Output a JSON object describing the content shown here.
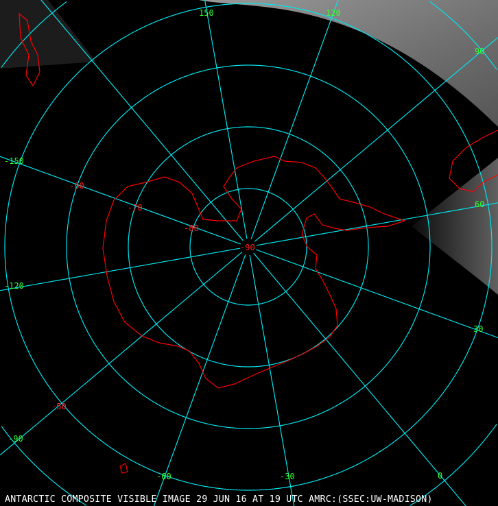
{
  "caption": "ANTARCTIC COMPOSITE VISIBLE IMAGE 29 JUN 16 AT 19 UTC AMRC:(SSEC:UW-MADISON)",
  "colors": {
    "grid": "#00e5ee",
    "coastline": "#ff0000",
    "longitude_labels": "#33ff33",
    "latitude_labels": "#ff2020",
    "caption": "#ffffff",
    "cloud": "#8a8a8a"
  },
  "latitude_labels": [
    "-90",
    "-80",
    "-70",
    "-60",
    "-50"
  ],
  "longitude_labels": [
    "150",
    "120",
    "90",
    "60",
    "30",
    "0",
    "-30",
    "-60",
    "-90",
    "-120",
    "-150"
  ],
  "projection": "south polar stereographic"
}
